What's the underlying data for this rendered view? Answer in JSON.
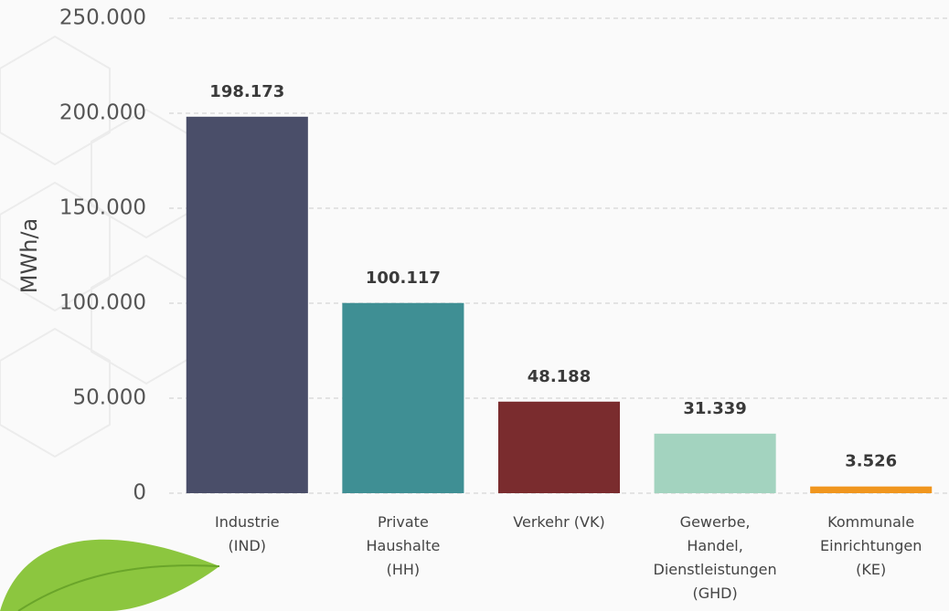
{
  "chart_data": {
    "type": "bar",
    "y_label": "MWh/a",
    "categories": [
      "Industrie\n(IND)",
      "Private\nHaushalte\n(HH)",
      "Verkehr (VK)",
      "Gewerbe,\nHandel,\nDienstleistungen\n(GHD)",
      "Kommunale\nEinrichtungen\n(KE)"
    ],
    "values": [
      198173,
      100117,
      48188,
      31339,
      3526
    ],
    "value_labels": [
      "198.173",
      "100.117",
      "48.188",
      "31.339",
      "3.526"
    ],
    "colors": [
      "#4a4e69",
      "#3f8f94",
      "#7a2c2e",
      "#a3d3bf",
      "#f0961e"
    ],
    "ylim": [
      0,
      250000
    ],
    "yticks": [
      {
        "value": 0,
        "label": "0"
      },
      {
        "value": 50000,
        "label": "50.000"
      },
      {
        "value": 100000,
        "label": "100.000"
      },
      {
        "value": 150000,
        "label": "150.000"
      },
      {
        "value": 200000,
        "label": "200.000"
      },
      {
        "value": 250000,
        "label": "250.000"
      }
    ],
    "grid": true
  }
}
